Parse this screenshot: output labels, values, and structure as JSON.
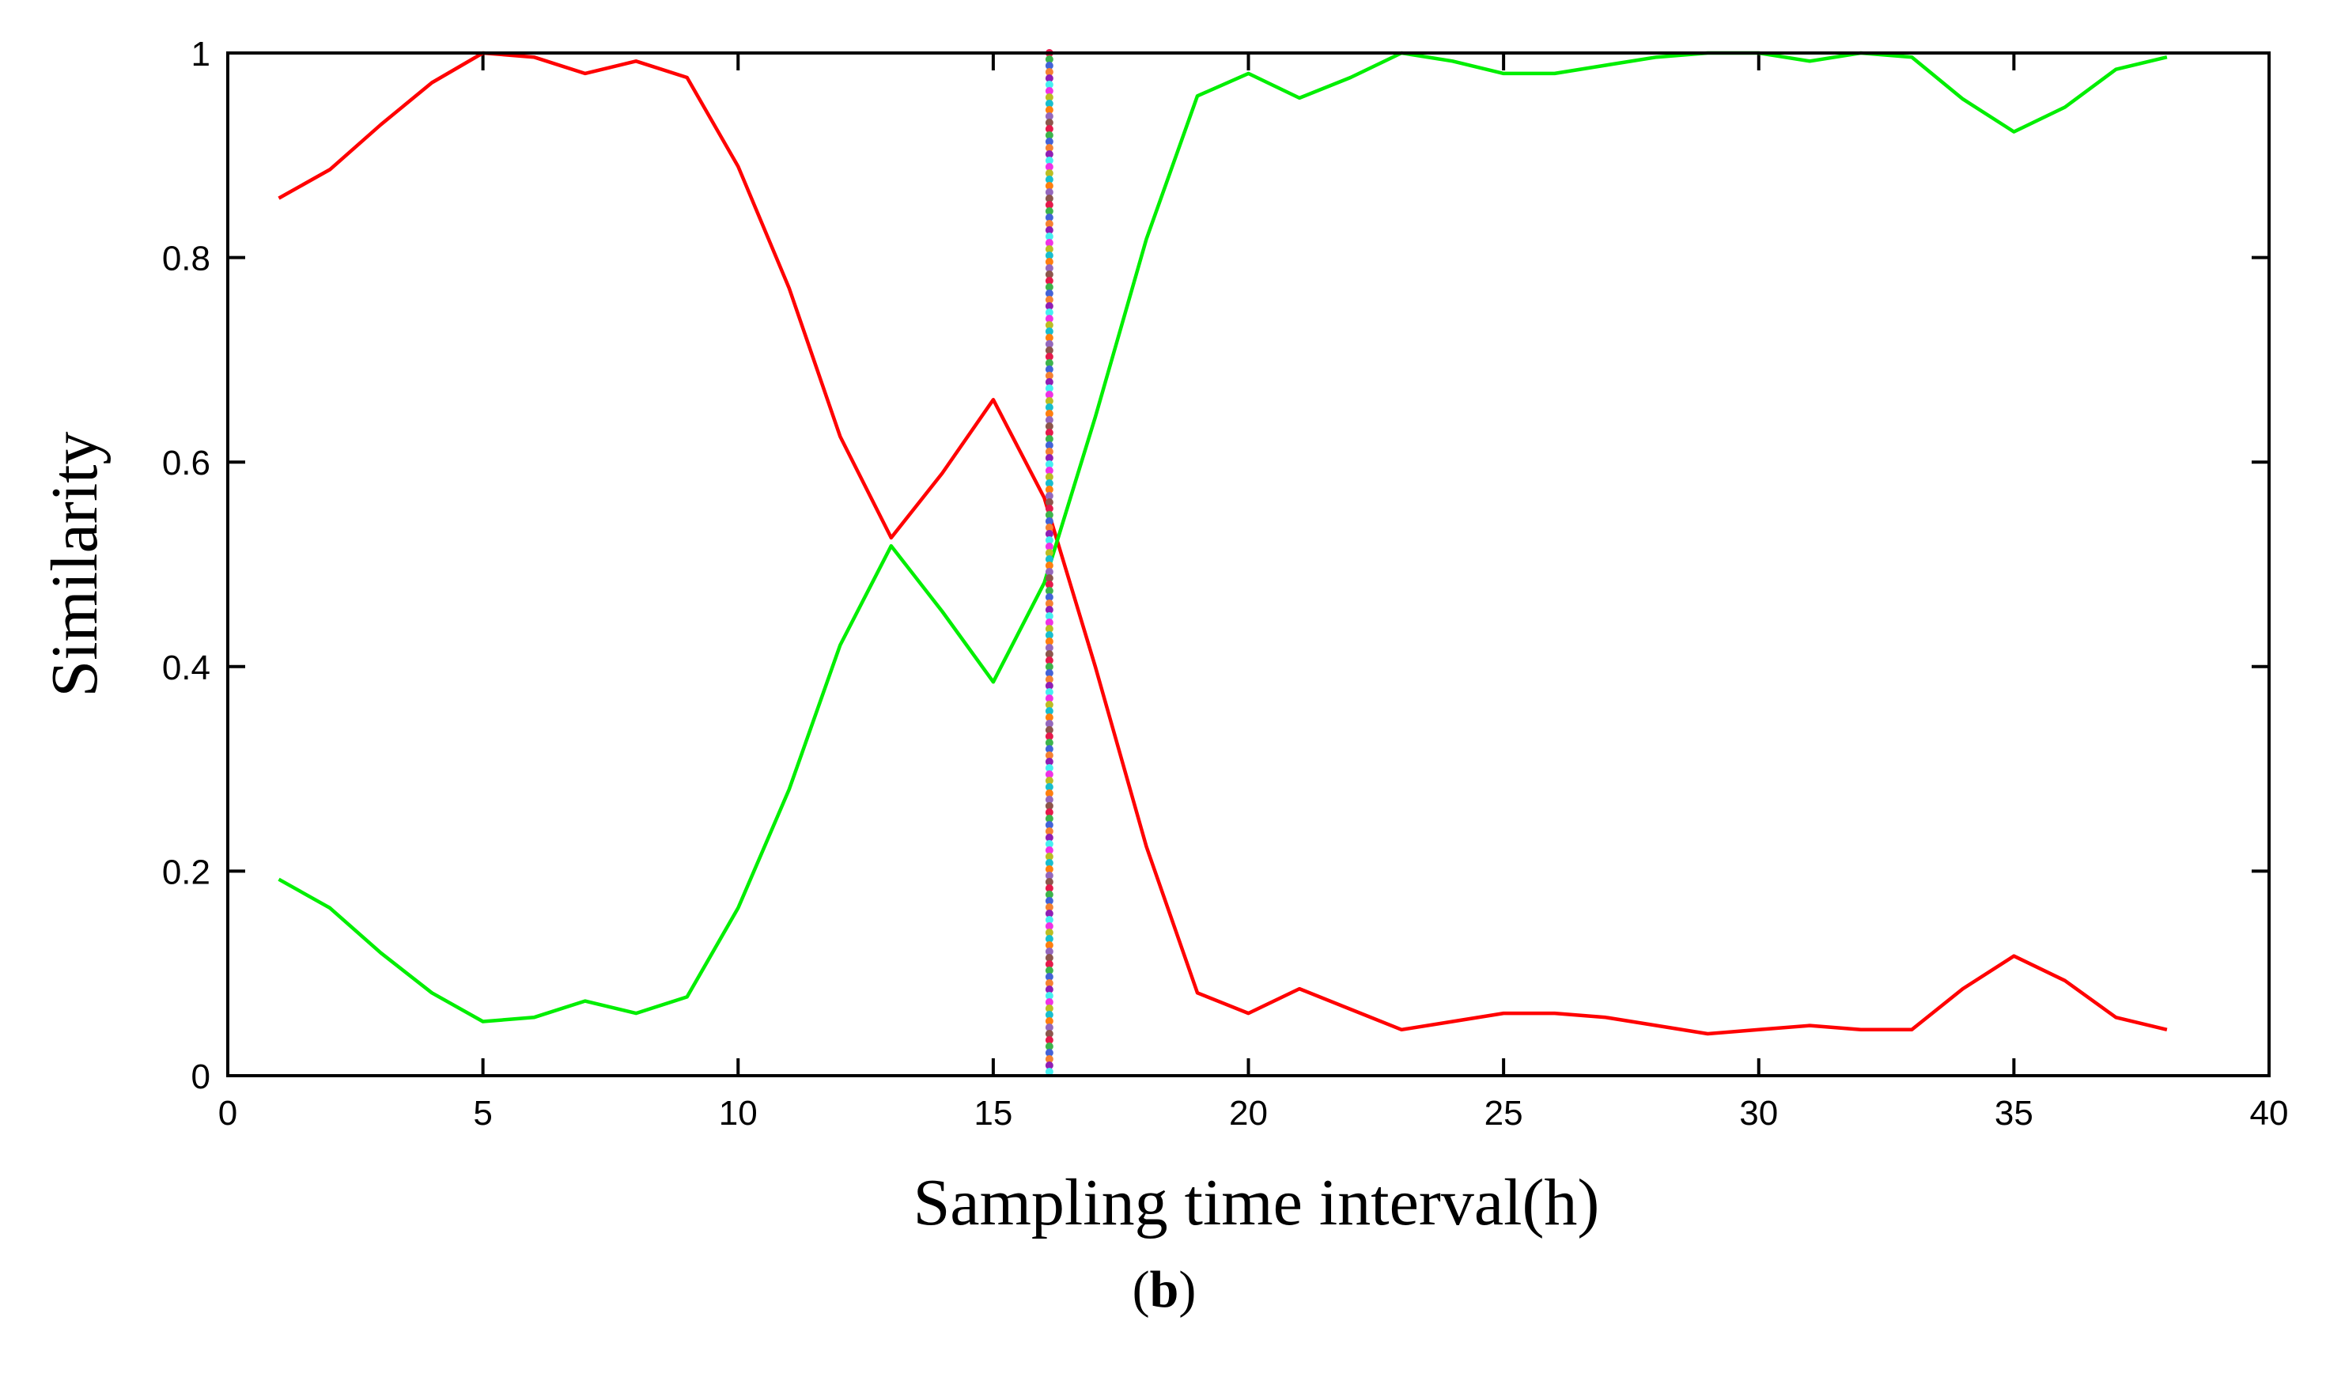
{
  "chart_data": {
    "type": "line",
    "title": "",
    "xlabel": "Sampling time interval(h)",
    "ylabel": "Similarity",
    "xlim": [
      0,
      40
    ],
    "ylim": [
      0,
      1
    ],
    "xticks": [
      0,
      5,
      10,
      15,
      20,
      25,
      30,
      35,
      40
    ],
    "yticks": [
      0,
      0.2,
      0.4,
      0.6,
      0.8,
      1
    ],
    "ytick_labels": [
      "0",
      "0.2",
      "0.4",
      "0.6",
      "0.8",
      "1"
    ],
    "grid": false,
    "x": [
      1,
      2,
      3,
      4,
      5,
      6,
      7,
      8,
      9,
      10,
      11,
      12,
      13,
      14,
      15,
      16,
      17,
      18,
      19,
      20,
      21,
      22,
      23,
      24,
      25,
      26,
      27,
      28,
      29,
      30,
      31,
      32,
      33,
      34,
      35,
      36,
      37,
      38
    ],
    "series": [
      {
        "name": "red",
        "color": "#ff0000",
        "values": [
          0.858,
          0.886,
          0.93,
          0.971,
          1.0,
          0.996,
          0.98,
          0.992,
          0.976,
          0.889,
          0.77,
          0.625,
          0.526,
          0.589,
          0.661,
          0.565,
          0.4,
          0.224,
          0.081,
          0.061,
          0.085,
          0.065,
          0.045,
          0.053,
          0.061,
          0.061,
          0.057,
          0.049,
          0.041,
          0.045,
          0.049,
          0.045,
          0.045,
          0.085,
          0.117,
          0.093,
          0.057,
          0.045
        ]
      },
      {
        "name": "green",
        "color": "#00ee00",
        "values": [
          0.192,
          0.164,
          0.12,
          0.081,
          0.053,
          0.057,
          0.073,
          0.061,
          0.077,
          0.164,
          0.28,
          0.421,
          0.518,
          0.454,
          0.385,
          0.482,
          0.644,
          0.818,
          0.958,
          0.98,
          0.956,
          0.976,
          1.0,
          0.992,
          0.98,
          0.98,
          0.988,
          0.996,
          1.0,
          1.0,
          0.992,
          1.0,
          0.996,
          0.955,
          0.923,
          0.947,
          0.984,
          0.996
        ]
      }
    ],
    "vertical_marker": {
      "x": 16.1,
      "y_range": [
        0,
        1
      ],
      "dot_colors": [
        "#e6194b",
        "#3cb44b",
        "#4363d8",
        "#f58231",
        "#911eb4",
        "#46f0f0",
        "#f032e6",
        "#bcbd22",
        "#17becf",
        "#ff7f0e",
        "#9467bd",
        "#8c564b"
      ]
    },
    "caption": "b"
  }
}
